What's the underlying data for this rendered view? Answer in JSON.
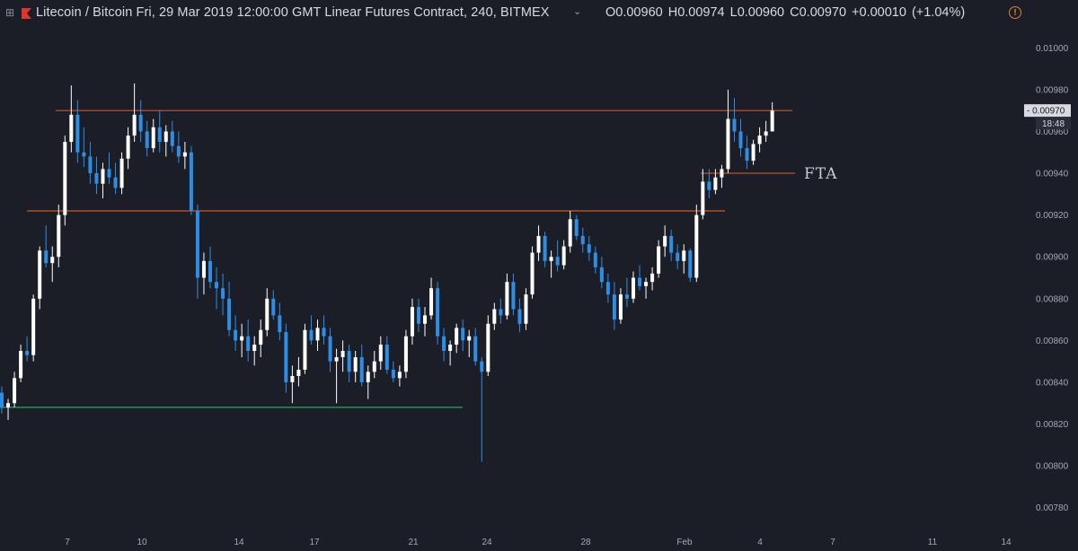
{
  "header": {
    "symbol_title": "Litecoin / Bitcoin Fri, 29 Mar 2019 12:00:00 GMT Linear Futures Contract, 240, BITMEX",
    "expand_icon": "expand-icon",
    "flag_icon": "bitmex-flag-icon",
    "chevron_icon": "chevron-down-icon",
    "ohlc_text": "O0.00960  H0.00974  L0.00960  C0.00970  +0.00010 (+1.04%)",
    "warning_icon": "warning-icon",
    "warning_glyph": "!"
  },
  "chart_data": {
    "type": "candlestick",
    "ylim": [
      0.0077,
      0.01
    ],
    "y_ticks": [
      "0.01000",
      "0.00980",
      "0.00960",
      "0.00940",
      "0.00920",
      "0.00900",
      "0.00880",
      "0.00860",
      "0.00840",
      "0.00820",
      "0.00800",
      "0.00780"
    ],
    "x_ticks": [
      "7",
      "10",
      "14",
      "17",
      "21",
      "24",
      "28",
      "Feb",
      "4",
      "7",
      "11",
      "14"
    ],
    "price_label": "0.00970",
    "countdown_label": "18:48",
    "colors": {
      "up": "#ffffff",
      "down": "#2e8ee6",
      "resistance": "#c9572d",
      "support": "#2bb673"
    },
    "levels": [
      {
        "name": "upper-resistance",
        "value": 0.0097,
        "color": "#c9572d"
      },
      {
        "name": "mid-resistance",
        "value": 0.00922,
        "color": "#c9572d"
      },
      {
        "name": "support",
        "value": 0.00828,
        "color": "#2bb673"
      },
      {
        "name": "fta-level",
        "value": 0.0094,
        "color": "#c9572d"
      }
    ],
    "annotations": [
      {
        "text": "FTA",
        "at": 0.0094
      }
    ],
    "candles": [
      [
        0.00835,
        0.00838,
        0.00825,
        0.00828
      ],
      [
        0.00828,
        0.00832,
        0.00822,
        0.0083
      ],
      [
        0.0083,
        0.00845,
        0.00828,
        0.00842
      ],
      [
        0.00842,
        0.00858,
        0.0084,
        0.00855
      ],
      [
        0.00855,
        0.00862,
        0.0085,
        0.00853
      ],
      [
        0.00853,
        0.00882,
        0.0085,
        0.0088
      ],
      [
        0.0088,
        0.00905,
        0.00875,
        0.00903
      ],
      [
        0.00903,
        0.00915,
        0.00895,
        0.00897
      ],
      [
        0.00897,
        0.00905,
        0.00888,
        0.009
      ],
      [
        0.009,
        0.00925,
        0.00895,
        0.0092
      ],
      [
        0.0092,
        0.00958,
        0.00915,
        0.00955
      ],
      [
        0.00955,
        0.00982,
        0.0095,
        0.00968
      ],
      [
        0.00968,
        0.00975,
        0.00945,
        0.0095
      ],
      [
        0.0095,
        0.00962,
        0.00943,
        0.00948
      ],
      [
        0.00948,
        0.00955,
        0.00935,
        0.0094
      ],
      [
        0.0094,
        0.00948,
        0.0093,
        0.00935
      ],
      [
        0.00935,
        0.00945,
        0.00928,
        0.00942
      ],
      [
        0.00942,
        0.0095,
        0.00935,
        0.00938
      ],
      [
        0.00938,
        0.00945,
        0.0093,
        0.00933
      ],
      [
        0.00933,
        0.0095,
        0.0093,
        0.00947
      ],
      [
        0.00947,
        0.00962,
        0.00942,
        0.00958
      ],
      [
        0.00958,
        0.00983,
        0.00955,
        0.00968
      ],
      [
        0.00968,
        0.00975,
        0.00955,
        0.0096
      ],
      [
        0.0096,
        0.00965,
        0.00948,
        0.00952
      ],
      [
        0.00952,
        0.00966,
        0.0095,
        0.00962
      ],
      [
        0.00962,
        0.0097,
        0.0095,
        0.00955
      ],
      [
        0.00955,
        0.00963,
        0.00948,
        0.0096
      ],
      [
        0.0096,
        0.00965,
        0.0095,
        0.00953
      ],
      [
        0.00953,
        0.0096,
        0.00945,
        0.00948
      ],
      [
        0.00948,
        0.00955,
        0.00942,
        0.0095
      ],
      [
        0.0095,
        0.00953,
        0.0092,
        0.00922
      ],
      [
        0.00922,
        0.00925,
        0.0088,
        0.0089
      ],
      [
        0.0089,
        0.00902,
        0.00882,
        0.00898
      ],
      [
        0.00898,
        0.00905,
        0.00885,
        0.00888
      ],
      [
        0.00888,
        0.00895,
        0.00875,
        0.00885
      ],
      [
        0.00885,
        0.00892,
        0.00872,
        0.0088
      ],
      [
        0.0088,
        0.00888,
        0.00862,
        0.00865
      ],
      [
        0.00865,
        0.00872,
        0.00855,
        0.0086
      ],
      [
        0.0086,
        0.00868,
        0.00852,
        0.00862
      ],
      [
        0.00862,
        0.0087,
        0.0085,
        0.00855
      ],
      [
        0.00855,
        0.00862,
        0.00848,
        0.00858
      ],
      [
        0.00858,
        0.0087,
        0.00852,
        0.00865
      ],
      [
        0.00865,
        0.00885,
        0.00862,
        0.0088
      ],
      [
        0.0088,
        0.00884,
        0.0087,
        0.00872
      ],
      [
        0.00872,
        0.00878,
        0.0086,
        0.00864
      ],
      [
        0.00864,
        0.00868,
        0.00835,
        0.0084
      ],
      [
        0.0084,
        0.00848,
        0.0083,
        0.00843
      ],
      [
        0.00843,
        0.00852,
        0.00838,
        0.00846
      ],
      [
        0.00846,
        0.00868,
        0.00844,
        0.00865
      ],
      [
        0.00865,
        0.00872,
        0.00858,
        0.0086
      ],
      [
        0.0086,
        0.0087,
        0.00855,
        0.00866
      ],
      [
        0.00866,
        0.00872,
        0.00858,
        0.00862
      ],
      [
        0.00862,
        0.00866,
        0.00845,
        0.0085
      ],
      [
        0.0085,
        0.00856,
        0.0083,
        0.00852
      ],
      [
        0.00852,
        0.0086,
        0.00845,
        0.00855
      ],
      [
        0.00855,
        0.00858,
        0.0084,
        0.00845
      ],
      [
        0.00845,
        0.00855,
        0.0084,
        0.00852
      ],
      [
        0.00852,
        0.00858,
        0.00838,
        0.0084
      ],
      [
        0.0084,
        0.00848,
        0.00832,
        0.00845
      ],
      [
        0.00845,
        0.00855,
        0.00842,
        0.0085
      ],
      [
        0.0085,
        0.00862,
        0.00846,
        0.00858
      ],
      [
        0.00858,
        0.00862,
        0.00844,
        0.00846
      ],
      [
        0.00846,
        0.0085,
        0.0084,
        0.00842
      ],
      [
        0.00842,
        0.00848,
        0.00838,
        0.00845
      ],
      [
        0.00845,
        0.00865,
        0.00842,
        0.00862
      ],
      [
        0.00862,
        0.0088,
        0.00858,
        0.00876
      ],
      [
        0.00876,
        0.0088,
        0.00864,
        0.00868
      ],
      [
        0.00868,
        0.00876,
        0.00862,
        0.00872
      ],
      [
        0.00872,
        0.0089,
        0.0087,
        0.00885
      ],
      [
        0.00885,
        0.00888,
        0.00858,
        0.00862
      ],
      [
        0.00862,
        0.00866,
        0.0085,
        0.00855
      ],
      [
        0.00855,
        0.0086,
        0.00848,
        0.00858
      ],
      [
        0.00858,
        0.00868,
        0.00854,
        0.00866
      ],
      [
        0.00866,
        0.0087,
        0.00855,
        0.0086
      ],
      [
        0.0086,
        0.00865,
        0.00852,
        0.00862
      ],
      [
        0.00862,
        0.00866,
        0.00848,
        0.0085
      ],
      [
        0.0085,
        0.00852,
        0.00802,
        0.00845
      ],
      [
        0.00845,
        0.00872,
        0.00843,
        0.00868
      ],
      [
        0.00868,
        0.00878,
        0.00865,
        0.00875
      ],
      [
        0.00875,
        0.0088,
        0.00868,
        0.00872
      ],
      [
        0.00872,
        0.00892,
        0.0087,
        0.00888
      ],
      [
        0.00888,
        0.00892,
        0.00872,
        0.00875
      ],
      [
        0.00875,
        0.0088,
        0.00864,
        0.00868
      ],
      [
        0.00868,
        0.00885,
        0.00865,
        0.00882
      ],
      [
        0.00882,
        0.00905,
        0.0088,
        0.00902
      ],
      [
        0.00902,
        0.00915,
        0.00898,
        0.0091
      ],
      [
        0.0091,
        0.00912,
        0.00895,
        0.00898
      ],
      [
        0.00898,
        0.00903,
        0.0089,
        0.009
      ],
      [
        0.009,
        0.00908,
        0.00893,
        0.00896
      ],
      [
        0.00896,
        0.00908,
        0.00894,
        0.00905
      ],
      [
        0.00905,
        0.00922,
        0.00902,
        0.00918
      ],
      [
        0.00918,
        0.0092,
        0.00908,
        0.0091
      ],
      [
        0.0091,
        0.00914,
        0.00902,
        0.00906
      ],
      [
        0.00906,
        0.0091,
        0.00898,
        0.00902
      ],
      [
        0.00902,
        0.00905,
        0.00892,
        0.00895
      ],
      [
        0.00895,
        0.009,
        0.00885,
        0.00888
      ],
      [
        0.00888,
        0.00892,
        0.00878,
        0.00882
      ],
      [
        0.00882,
        0.00888,
        0.00865,
        0.0087
      ],
      [
        0.0087,
        0.00885,
        0.00868,
        0.00882
      ],
      [
        0.00882,
        0.0089,
        0.00876,
        0.0088
      ],
      [
        0.0088,
        0.00893,
        0.00878,
        0.0089
      ],
      [
        0.0089,
        0.00896,
        0.00884,
        0.00886
      ],
      [
        0.00886,
        0.0089,
        0.0088,
        0.00888
      ],
      [
        0.00888,
        0.00895,
        0.00884,
        0.00892
      ],
      [
        0.00892,
        0.00908,
        0.0089,
        0.00905
      ],
      [
        0.00905,
        0.00915,
        0.009,
        0.0091
      ],
      [
        0.0091,
        0.00913,
        0.00898,
        0.00902
      ],
      [
        0.00902,
        0.00906,
        0.00894,
        0.00898
      ],
      [
        0.00898,
        0.00906,
        0.00892,
        0.00903
      ],
      [
        0.00903,
        0.00904,
        0.00888,
        0.0089
      ],
      [
        0.0089,
        0.00925,
        0.00888,
        0.0092
      ],
      [
        0.0092,
        0.00942,
        0.00918,
        0.00936
      ],
      [
        0.00936,
        0.00942,
        0.00928,
        0.00932
      ],
      [
        0.00932,
        0.00942,
        0.0093,
        0.00938
      ],
      [
        0.00938,
        0.00944,
        0.00933,
        0.00942
      ],
      [
        0.00942,
        0.0098,
        0.0094,
        0.00966
      ],
      [
        0.00966,
        0.00976,
        0.00955,
        0.0096
      ],
      [
        0.0096,
        0.00966,
        0.00948,
        0.00952
      ],
      [
        0.00952,
        0.00958,
        0.00942,
        0.00946
      ],
      [
        0.00946,
        0.00956,
        0.00944,
        0.00954
      ],
      [
        0.00954,
        0.00962,
        0.0095,
        0.00958
      ],
      [
        0.00958,
        0.00965,
        0.00955,
        0.0096
      ],
      [
        0.0096,
        0.00974,
        0.0096,
        0.0097
      ]
    ]
  }
}
